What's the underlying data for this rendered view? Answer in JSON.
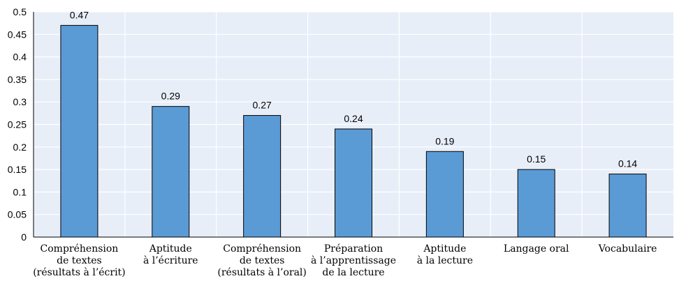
{
  "chart_data": {
    "type": "bar",
    "categories": [
      [
        "Compréhension",
        "de textes",
        "(résultats à l’écrit)"
      ],
      [
        "Aptitude",
        "à l’écriture"
      ],
      [
        "Compréhension",
        "de textes",
        "(résultats à l’oral)"
      ],
      [
        "Préparation",
        "à l’apprentissage",
        "de la lecture"
      ],
      [
        "Aptitude",
        "à la lecture"
      ],
      [
        "Langage oral"
      ],
      [
        "Vocabulaire"
      ]
    ],
    "values": [
      0.47,
      0.29,
      0.27,
      0.24,
      0.19,
      0.15,
      0.14
    ],
    "data_labels": [
      "0.47",
      "0.29",
      "0.27",
      "0.24",
      "0.19",
      "0.15",
      "0.14"
    ],
    "y_ticks": [
      {
        "value": 0,
        "label": "0"
      },
      {
        "value": 0.05,
        "label": "0.05"
      },
      {
        "value": 0.1,
        "label": "0.1"
      },
      {
        "value": 0.15,
        "label": "0.15"
      },
      {
        "value": 0.2,
        "label": "0.2"
      },
      {
        "value": 0.25,
        "label": "0.25"
      },
      {
        "value": 0.3,
        "label": "0.3"
      },
      {
        "value": 0.35,
        "label": "0.35"
      },
      {
        "value": 0.4,
        "label": "0.4"
      },
      {
        "value": 0.45,
        "label": "0.45"
      },
      {
        "value": 0.5,
        "label": "0.5"
      }
    ],
    "ylim": [
      0,
      0.5
    ],
    "grid": true,
    "legend": "none",
    "colors": {
      "plot_background": "#e8eef8",
      "bar_fill": "#5b9bd5",
      "bar_stroke": "#000000",
      "gridline": "#ffffff",
      "axis": "#000000"
    }
  }
}
